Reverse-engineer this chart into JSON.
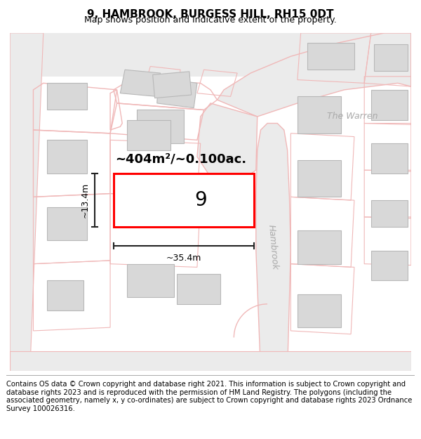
{
  "title": "9, HAMBROOK, BURGESS HILL, RH15 0DT",
  "subtitle": "Map shows position and indicative extent of the property.",
  "footer": "Contains OS data © Crown copyright and database right 2021. This information is subject to Crown copyright and database rights 2023 and is reproduced with the permission of HM Land Registry. The polygons (including the associated geometry, namely x, y co-ordinates) are subject to Crown copyright and database rights 2023 Ordnance Survey 100026316.",
  "area_label": "~404m²/~0.100ac.",
  "width_label": "~35.4m",
  "height_label": "~13.4m",
  "plot_number": "9",
  "bg_color": "#ffffff",
  "map_bg": "#ffffff",
  "road_fill": "#ebebeb",
  "road_edge": "#f0b8b8",
  "building_fill": "#d8d8d8",
  "building_edge": "#b8b8b8",
  "plot_edge": "#ff0000",
  "plot_fill": "#ffffff",
  "dim_color": "#222222",
  "street_color": "#aaaaaa",
  "title_fontsize": 11,
  "subtitle_fontsize": 9,
  "footer_fontsize": 7.2,
  "area_fontsize": 13,
  "dim_fontsize": 9,
  "plot_num_fontsize": 20,
  "street_fontsize": 9
}
